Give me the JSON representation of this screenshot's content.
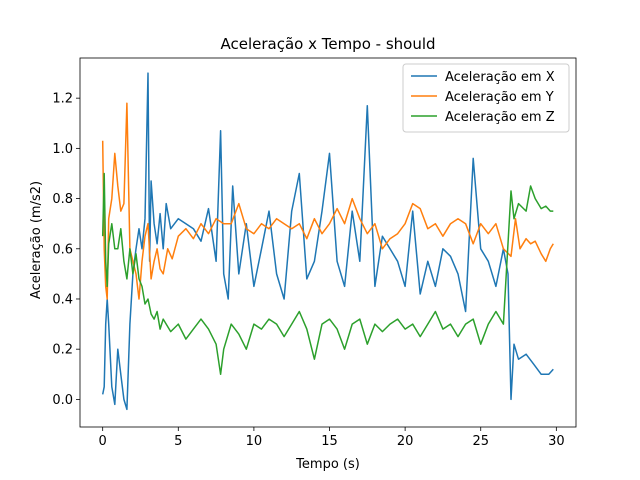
{
  "chart_data": {
    "type": "line",
    "title": "Aceleração x Tempo - should",
    "xlabel": "Tempo (s)",
    "ylabel": "Aceleração (m/s2)",
    "xlim": [
      -1.5,
      31.3
    ],
    "ylim": [
      -0.11,
      1.36
    ],
    "xticks": [
      0,
      5,
      10,
      15,
      20,
      25,
      30
    ],
    "yticks": [
      0.0,
      0.2,
      0.4,
      0.6,
      0.8,
      1.0,
      1.2
    ],
    "xtick_labels": [
      "0",
      "5",
      "10",
      "15",
      "20",
      "25",
      "30"
    ],
    "ytick_labels": [
      "0.0",
      "0.2",
      "0.4",
      "0.6",
      "0.8",
      "1.0",
      "1.2"
    ],
    "grid": false,
    "legend_position": "top-right",
    "series": [
      {
        "name": "Aceleração em X",
        "color": "#1f77b4",
        "x": [
          0.0,
          0.1,
          0.2,
          0.3,
          0.4,
          0.6,
          0.8,
          1.0,
          1.2,
          1.4,
          1.6,
          1.8,
          2.0,
          2.2,
          2.4,
          2.6,
          2.8,
          3.0,
          3.1,
          3.2,
          3.4,
          3.6,
          3.8,
          4.0,
          4.2,
          4.5,
          5.0,
          5.5,
          6.0,
          6.5,
          7.0,
          7.5,
          7.8,
          8.0,
          8.3,
          8.6,
          9.0,
          9.5,
          10.0,
          10.5,
          11.0,
          11.5,
          12.0,
          12.5,
          13.0,
          13.5,
          14.0,
          14.5,
          15.0,
          15.5,
          16.0,
          16.5,
          17.0,
          17.5,
          18.0,
          18.5,
          19.0,
          19.5,
          20.0,
          20.5,
          21.0,
          21.5,
          22.0,
          22.5,
          23.0,
          23.5,
          24.0,
          24.5,
          25.0,
          25.5,
          26.0,
          26.5,
          26.8,
          27.0,
          27.2,
          27.5,
          28.0,
          28.5,
          29.0,
          29.5,
          29.8
        ],
        "y": [
          0.02,
          0.05,
          0.3,
          0.4,
          0.3,
          0.05,
          -0.02,
          0.2,
          0.1,
          0.0,
          -0.04,
          0.3,
          0.5,
          0.6,
          0.68,
          0.6,
          0.72,
          1.3,
          0.55,
          0.87,
          0.7,
          0.62,
          0.74,
          0.6,
          0.78,
          0.68,
          0.72,
          0.7,
          0.68,
          0.63,
          0.76,
          0.55,
          1.07,
          0.5,
          0.4,
          0.85,
          0.5,
          0.7,
          0.45,
          0.6,
          0.75,
          0.5,
          0.4,
          0.75,
          0.9,
          0.48,
          0.55,
          0.75,
          0.98,
          0.55,
          0.45,
          0.75,
          0.55,
          1.17,
          0.45,
          0.65,
          0.6,
          0.55,
          0.45,
          0.75,
          0.42,
          0.55,
          0.45,
          0.6,
          0.57,
          0.5,
          0.35,
          0.96,
          0.6,
          0.55,
          0.45,
          0.6,
          0.5,
          0.0,
          0.22,
          0.16,
          0.18,
          0.14,
          0.1,
          0.1,
          0.12
        ]
      },
      {
        "name": "Aceleração em Y",
        "color": "#ff7f0e",
        "x": [
          0.0,
          0.1,
          0.2,
          0.3,
          0.4,
          0.6,
          0.8,
          1.0,
          1.2,
          1.4,
          1.6,
          1.8,
          2.0,
          2.2,
          2.4,
          2.6,
          2.8,
          3.0,
          3.2,
          3.4,
          3.6,
          3.8,
          4.0,
          4.3,
          4.6,
          5.0,
          5.5,
          6.0,
          6.5,
          7.0,
          7.5,
          8.0,
          8.5,
          9.0,
          9.5,
          10.0,
          10.5,
          11.0,
          11.5,
          12.0,
          12.5,
          13.0,
          13.5,
          14.0,
          14.5,
          15.0,
          15.5,
          16.0,
          16.5,
          17.0,
          17.5,
          18.0,
          18.5,
          19.0,
          19.5,
          20.0,
          20.5,
          21.0,
          21.5,
          22.0,
          22.5,
          23.0,
          23.5,
          24.0,
          24.5,
          25.0,
          25.5,
          26.0,
          26.5,
          27.0,
          27.3,
          27.6,
          28.0,
          28.3,
          28.6,
          29.0,
          29.3,
          29.6,
          29.8
        ],
        "y": [
          1.03,
          0.6,
          0.45,
          0.4,
          0.72,
          0.8,
          0.98,
          0.85,
          0.75,
          0.78,
          1.18,
          0.6,
          0.55,
          0.5,
          0.4,
          0.55,
          0.65,
          0.7,
          0.48,
          0.55,
          0.6,
          0.52,
          0.5,
          0.6,
          0.56,
          0.65,
          0.68,
          0.64,
          0.7,
          0.66,
          0.72,
          0.7,
          0.7,
          0.78,
          0.68,
          0.66,
          0.7,
          0.68,
          0.72,
          0.7,
          0.68,
          0.7,
          0.64,
          0.72,
          0.66,
          0.7,
          0.76,
          0.7,
          0.8,
          0.72,
          0.66,
          0.7,
          0.6,
          0.64,
          0.66,
          0.7,
          0.78,
          0.76,
          0.68,
          0.7,
          0.65,
          0.7,
          0.72,
          0.7,
          0.62,
          0.7,
          0.66,
          0.7,
          0.6,
          0.57,
          0.72,
          0.6,
          0.64,
          0.62,
          0.63,
          0.58,
          0.55,
          0.6,
          0.62
        ]
      },
      {
        "name": "Aceleração em Z",
        "color": "#2ca02c",
        "x": [
          0.0,
          0.1,
          0.2,
          0.3,
          0.4,
          0.6,
          0.8,
          1.0,
          1.2,
          1.4,
          1.6,
          1.8,
          2.0,
          2.2,
          2.4,
          2.6,
          2.8,
          3.0,
          3.2,
          3.4,
          3.6,
          3.8,
          4.0,
          4.5,
          5.0,
          5.5,
          6.0,
          6.5,
          7.0,
          7.5,
          7.8,
          8.0,
          8.5,
          9.0,
          9.5,
          10.0,
          10.5,
          11.0,
          11.5,
          12.0,
          12.5,
          13.0,
          13.5,
          14.0,
          14.5,
          15.0,
          15.5,
          16.0,
          16.5,
          17.0,
          17.5,
          18.0,
          18.5,
          19.0,
          19.5,
          20.0,
          20.5,
          21.0,
          21.5,
          22.0,
          22.5,
          23.0,
          23.5,
          24.0,
          24.5,
          25.0,
          25.5,
          26.0,
          26.5,
          27.0,
          27.2,
          27.5,
          28.0,
          28.3,
          28.6,
          29.0,
          29.3,
          29.6,
          29.8
        ],
        "y": [
          0.65,
          0.9,
          0.55,
          0.45,
          0.62,
          0.7,
          0.6,
          0.6,
          0.68,
          0.55,
          0.48,
          0.6,
          0.5,
          0.58,
          0.48,
          0.45,
          0.38,
          0.4,
          0.34,
          0.32,
          0.35,
          0.28,
          0.32,
          0.27,
          0.3,
          0.24,
          0.28,
          0.32,
          0.28,
          0.22,
          0.1,
          0.2,
          0.3,
          0.26,
          0.2,
          0.3,
          0.28,
          0.32,
          0.3,
          0.25,
          0.3,
          0.35,
          0.28,
          0.16,
          0.3,
          0.32,
          0.28,
          0.2,
          0.3,
          0.32,
          0.22,
          0.3,
          0.27,
          0.3,
          0.32,
          0.28,
          0.3,
          0.25,
          0.3,
          0.35,
          0.28,
          0.3,
          0.25,
          0.3,
          0.32,
          0.22,
          0.3,
          0.35,
          0.3,
          0.83,
          0.72,
          0.78,
          0.75,
          0.85,
          0.8,
          0.76,
          0.77,
          0.75,
          0.75
        ]
      }
    ]
  }
}
